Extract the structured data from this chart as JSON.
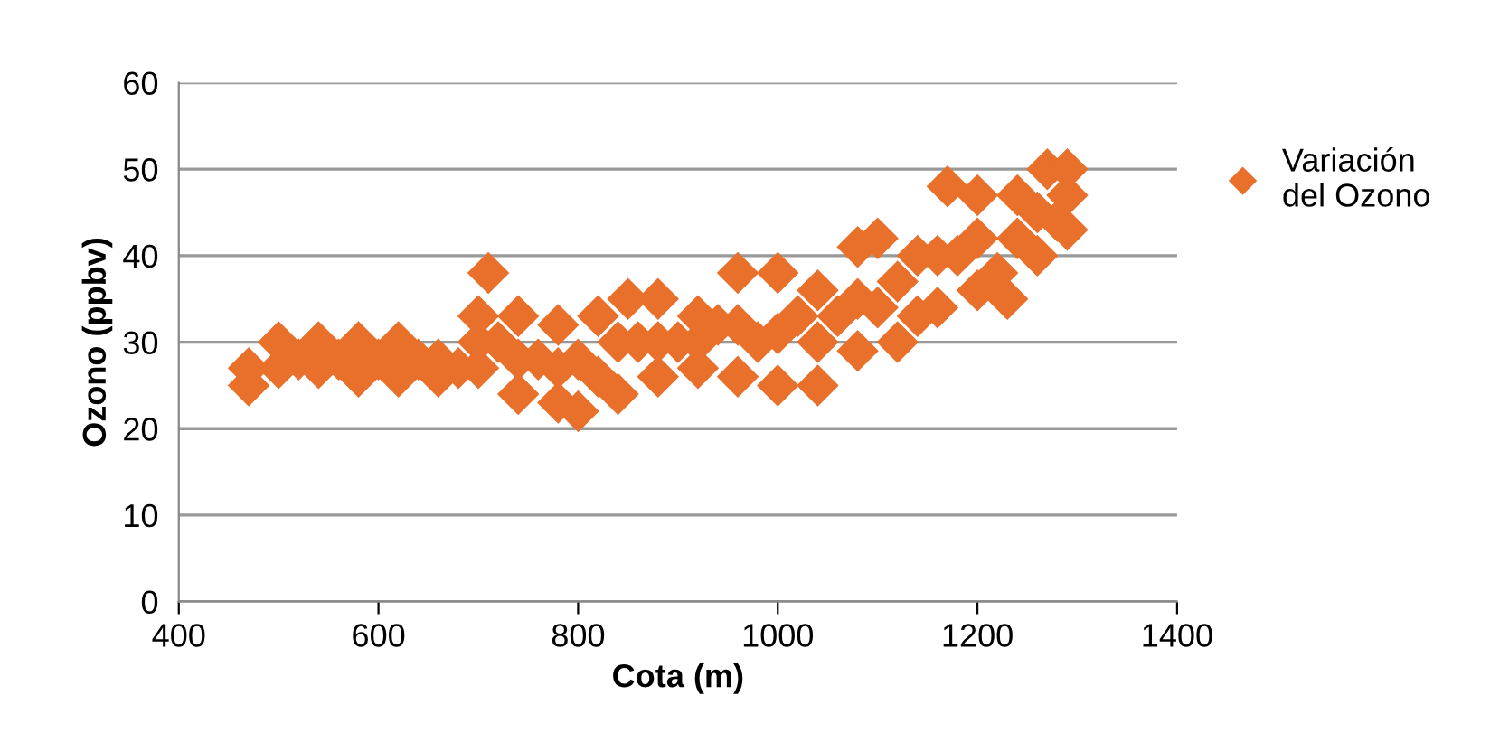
{
  "chart_data": {
    "type": "scatter",
    "xlabel": "Cota (m)",
    "ylabel": "Ozono (ppbv)",
    "xlim": [
      400,
      1400
    ],
    "xticks": [
      400,
      600,
      800,
      1000,
      1200,
      1400
    ],
    "ylim": [
      0,
      60
    ],
    "yticks": [
      0,
      10,
      20,
      30,
      40,
      50,
      60
    ],
    "grid": "y",
    "legend": "right",
    "marker": "diamond",
    "series": [
      {
        "name": "Variación\ndel Ozono",
        "color": "#e8702a",
        "x": [
          470,
          470,
          500,
          500,
          520,
          540,
          540,
          560,
          580,
          580,
          600,
          620,
          620,
          640,
          660,
          660,
          680,
          700,
          700,
          700,
          710,
          720,
          740,
          740,
          740,
          760,
          780,
          780,
          780,
          800,
          800,
          820,
          820,
          840,
          840,
          850,
          860,
          880,
          880,
          880,
          900,
          920,
          920,
          920,
          940,
          960,
          960,
          960,
          980,
          1000,
          1000,
          1000,
          1020,
          1040,
          1040,
          1040,
          1060,
          1080,
          1080,
          1080,
          1100,
          1100,
          1120,
          1120,
          1140,
          1140,
          1160,
          1160,
          1170,
          1180,
          1200,
          1200,
          1200,
          1220,
          1230,
          1240,
          1240,
          1260,
          1260,
          1270,
          1280,
          1290,
          1290,
          1290
        ],
        "values": [
          25,
          27,
          27,
          30,
          28,
          27,
          30,
          28,
          26,
          30,
          28,
          26,
          30,
          28,
          26,
          28,
          27,
          27,
          30,
          33,
          38,
          30,
          24,
          28,
          33,
          28,
          23,
          27,
          32,
          22,
          28,
          26,
          33,
          24,
          30,
          35,
          30,
          26,
          30,
          35,
          30,
          27,
          30,
          33,
          32,
          26,
          32,
          38,
          30,
          25,
          31,
          38,
          33,
          25,
          30,
          36,
          33,
          29,
          35,
          41,
          34,
          42,
          30,
          37,
          33,
          40,
          34,
          40,
          48,
          40,
          36,
          42,
          47,
          38,
          35,
          42,
          47,
          40,
          45,
          50,
          44,
          43,
          47,
          50
        ]
      }
    ]
  }
}
